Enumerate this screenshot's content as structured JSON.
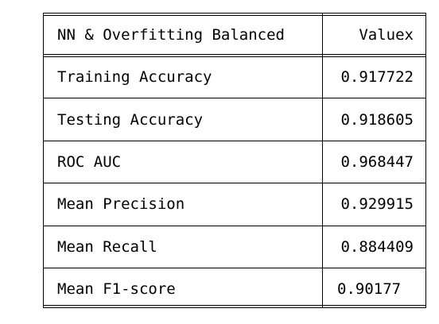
{
  "table": {
    "headers": [
      "NN & Overfitting Balanced",
      "Valuex"
    ],
    "rows": [
      {
        "metric": "Training Accuracy",
        "value": "0.917722"
      },
      {
        "metric": "Testing Accuracy",
        "value": "0.918605"
      },
      {
        "metric": "ROC AUC",
        "value": "0.968447"
      },
      {
        "metric": "Mean Precision",
        "value": "0.929915"
      },
      {
        "metric": "Mean Recall",
        "value": "0.884409"
      },
      {
        "metric": "Mean F1-score",
        "value": "0.90177"
      }
    ]
  }
}
